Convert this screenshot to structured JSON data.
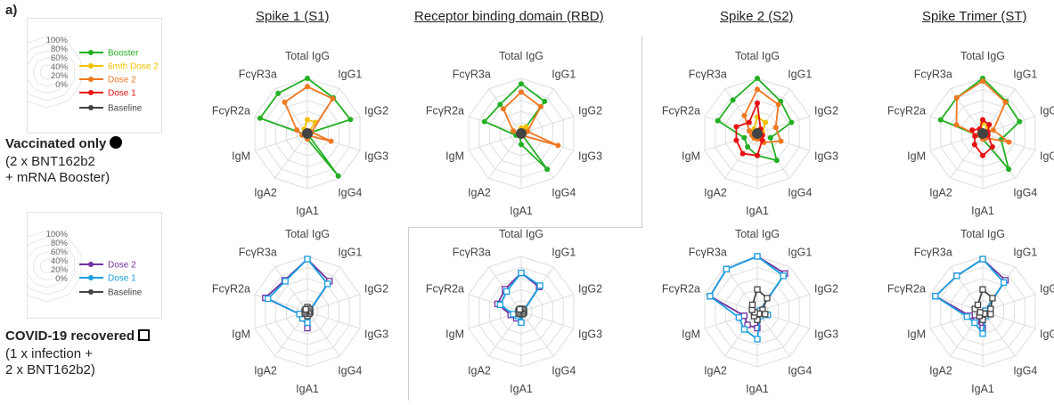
{
  "panel_label": "a)",
  "columns": [
    "Spike 1 (S1)",
    "Receptor binding domain (RBD)",
    "Spike 2 (S2)",
    "Spike Trimer (ST)"
  ],
  "groups": [
    {
      "title": "Vaccinated only",
      "symbol": "filled-circle",
      "desc": [
        "(2 x BNT162b2",
        "+ mRNA Booster)"
      ]
    },
    {
      "title": "COVID-19 recovered",
      "symbol": "open-square",
      "desc": [
        "(1 x infection +",
        "2 x BNT162b2)"
      ]
    }
  ],
  "legend_ticks": [
    "100%",
    "80%",
    "60%",
    "40%",
    "20%",
    "0%"
  ],
  "colors": {
    "Booster": "#22b022",
    "6mth Dose 2": "#f5c000",
    "Dose 2 (vaccinated)": "#f07820",
    "Dose 1 (vaccinated)": "#e81010",
    "Baseline": "#444444",
    "Dose 2 (recovered)": "#7030a0",
    "Dose 1 (recovered)": "#1aa0e0"
  },
  "chart_data": {
    "type": "radar",
    "axes": [
      "Total IgG",
      "IgG1",
      "IgG2",
      "IgG3",
      "IgG4",
      "IgA1",
      "IgA2",
      "IgM",
      "FcγR2a",
      "FcγR3a"
    ],
    "range": [
      0,
      100
    ],
    "grid": true,
    "legend_vaccinated": [
      "Booster",
      "6mth Dose 2",
      "Dose 2",
      "Dose 1",
      "Baseline"
    ],
    "legend_recovered": [
      "Dose 2",
      "Dose 1",
      "Baseline"
    ],
    "charts": [
      {
        "column": "Spike 1 (S1)",
        "group": "Vaccinated only",
        "series": [
          {
            "name": "Booster",
            "values": [
              100,
              80,
              82,
              0,
              95,
              10,
              0,
              5,
              90,
              90
            ]
          },
          {
            "name": "6mth Dose 2",
            "values": [
              25,
              25,
              0,
              0,
              0,
              0,
              0,
              0,
              5,
              10
            ]
          },
          {
            "name": "Dose 2",
            "values": [
              85,
              78,
              8,
              45,
              5,
              10,
              5,
              10,
              20,
              70
            ]
          },
          {
            "name": "Dose 1",
            "values": [
              5,
              5,
              0,
              0,
              0,
              5,
              0,
              0,
              0,
              0
            ]
          },
          {
            "name": "Baseline",
            "values": [
              5,
              5,
              5,
              5,
              5,
              5,
              5,
              5,
              5,
              5
            ]
          }
        ]
      },
      {
        "column": "Receptor binding domain (RBD)",
        "group": "Vaccinated only",
        "series": [
          {
            "name": "Booster",
            "values": [
              90,
              72,
              0,
              0,
              80,
              20,
              5,
              10,
              70,
              65
            ]
          },
          {
            "name": "6mth Dose 2",
            "values": [
              10,
              15,
              10,
              0,
              0,
              0,
              0,
              0,
              5,
              5
            ]
          },
          {
            "name": "Dose 2",
            "values": [
              75,
              60,
              12,
              70,
              5,
              0,
              0,
              5,
              15,
              55
            ]
          },
          {
            "name": "Dose 1",
            "values": [
              5,
              5,
              0,
              0,
              0,
              0,
              0,
              0,
              0,
              0
            ]
          },
          {
            "name": "Baseline",
            "values": [
              5,
              5,
              5,
              5,
              5,
              5,
              5,
              5,
              5,
              5
            ]
          }
        ]
      },
      {
        "column": "Spike 2 (S2)",
        "group": "Vaccinated only",
        "series": [
          {
            "name": "Booster",
            "values": [
              100,
              72,
              65,
              25,
              60,
              40,
              30,
              25,
              75,
              75
            ]
          },
          {
            "name": "6mth Dose 2",
            "values": [
              30,
              25,
              10,
              5,
              5,
              5,
              5,
              10,
              10,
              10
            ]
          },
          {
            "name": "Dose 2",
            "values": [
              80,
              65,
              35,
              45,
              20,
              10,
              10,
              10,
              15,
              40
            ]
          },
          {
            "name": "Dose 1",
            "values": [
              55,
              10,
              5,
              10,
              15,
              40,
              45,
              40,
              40,
              25
            ]
          },
          {
            "name": "Baseline",
            "values": [
              5,
              5,
              5,
              5,
              5,
              5,
              5,
              5,
              5,
              5
            ]
          }
        ]
      },
      {
        "column": "Spike Trimer (ST)",
        "group": "Vaccinated only",
        "series": [
          {
            "name": "Booster",
            "values": [
              100,
              72,
              70,
              35,
              80,
              10,
              0,
              10,
              80,
              80
            ]
          },
          {
            "name": "6mth Dose 2",
            "values": [
              20,
              15,
              5,
              0,
              0,
              0,
              0,
              5,
              5,
              5
            ]
          },
          {
            "name": "Dose 2",
            "values": [
              95,
              70,
              20,
              50,
              10,
              10,
              5,
              10,
              50,
              80
            ]
          },
          {
            "name": "Dose 1",
            "values": [
              25,
              20,
              10,
              10,
              30,
              40,
              25,
              15,
              20,
              10
            ]
          },
          {
            "name": "Baseline",
            "values": [
              5,
              5,
              5,
              5,
              5,
              5,
              5,
              5,
              5,
              5
            ]
          }
        ]
      },
      {
        "column": "Spike 1 (S1)",
        "group": "COVID-19 recovered",
        "series": [
          {
            "name": "Dose 2",
            "values": [
              95,
              68,
              5,
              5,
              5,
              30,
              15,
              15,
              80,
              70
            ]
          },
          {
            "name": "Dose 1",
            "values": [
              95,
              62,
              5,
              5,
              5,
              20,
              15,
              15,
              75,
              68
            ]
          },
          {
            "name": "Baseline",
            "values": [
              8,
              6,
              5,
              5,
              5,
              8,
              5,
              5,
              5,
              5
            ]
          }
        ]
      },
      {
        "column": "Receptor binding domain (RBD)",
        "group": "COVID-19 recovered",
        "series": [
          {
            "name": "Dose 2",
            "values": [
              70,
              55,
              5,
              5,
              5,
              20,
              15,
              20,
              45,
              50
            ]
          },
          {
            "name": "Dose 1",
            "values": [
              70,
              58,
              5,
              5,
              5,
              20,
              10,
              15,
              40,
              45
            ]
          },
          {
            "name": "Baseline",
            "values": [
              5,
              5,
              5,
              5,
              5,
              5,
              5,
              5,
              5,
              5
            ]
          }
        ]
      },
      {
        "column": "Spike 2 (S2)",
        "group": "COVID-19 recovered",
        "series": [
          {
            "name": "Dose 2",
            "values": [
              100,
              85,
              5,
              10,
              5,
              30,
              30,
              25,
              90,
              95
            ]
          },
          {
            "name": "Dose 1",
            "values": [
              100,
              80,
              5,
              20,
              10,
              50,
              40,
              35,
              90,
              95
            ]
          },
          {
            "name": "Baseline",
            "values": [
              40,
              30,
              10,
              15,
              5,
              15,
              10,
              5,
              10,
              15
            ]
          }
        ]
      },
      {
        "column": "Spike Trimer (ST)",
        "group": "COVID-19 recovered",
        "series": [
          {
            "name": "Dose 2",
            "values": [
              95,
              70,
              5,
              5,
              5,
              30,
              20,
              25,
              90,
              80
            ]
          },
          {
            "name": "Dose 1",
            "values": [
              95,
              65,
              5,
              10,
              10,
              40,
              25,
              30,
              90,
              80
            ]
          },
          {
            "name": "Baseline",
            "values": [
              40,
              30,
              15,
              15,
              5,
              15,
              10,
              5,
              15,
              15
            ]
          }
        ]
      }
    ]
  }
}
